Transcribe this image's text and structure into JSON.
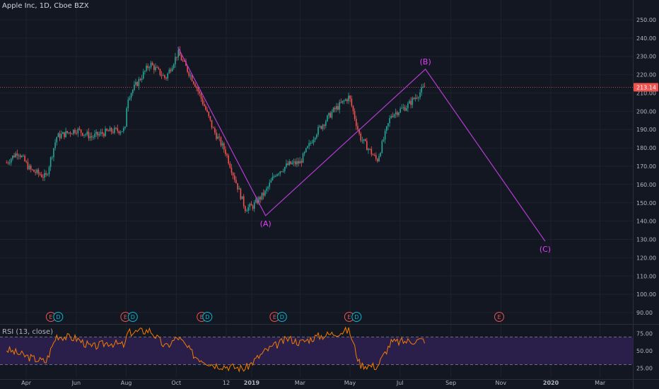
{
  "header": {
    "symbol_title": "Apple Inc, 1D, Cboe BZX"
  },
  "rsi_panel": {
    "title": "RSI (13, close)"
  },
  "colors": {
    "background": "#131722",
    "grid": "#1e222d",
    "up": "#26a69a",
    "down": "#ef5350",
    "wave": "#b43cd2",
    "wave_label": "#e040fb",
    "rsi_line": "#f57c00",
    "rsi_band": "#2a1f4a",
    "price_line": "#ef5350",
    "axis_text": "#b2b5be",
    "dividend": "#00bcd4"
  },
  "chart_data": [
    {
      "type": "candlestick",
      "title": "Apple Inc, 1D, Cboe BZX",
      "x_axis": {
        "tick_labels": [
          "Apr",
          "Jun",
          "Aug",
          "Oct",
          "12",
          "2019",
          "Mar",
          "May",
          "Jul",
          "Sep",
          "Nov",
          "2020",
          "Mar"
        ],
        "range": [
          "2018-03",
          "2020-04"
        ]
      },
      "y_axis": {
        "ticks": [
          90.0,
          100.0,
          110.0,
          120.0,
          130.0,
          140.0,
          150.0,
          160.0,
          170.0,
          180.0,
          190.0,
          200.0,
          210.0,
          220.0,
          230.0,
          240.0,
          250.0
        ],
        "range": [
          85,
          255
        ],
        "position": "right"
      },
      "grid": true,
      "last_price": 213.14,
      "last_price_label": "213.14",
      "price_path": [
        {
          "date": "2018-03-08",
          "price": 172
        },
        {
          "date": "2018-03-22",
          "price": 178
        },
        {
          "date": "2018-04-06",
          "price": 168
        },
        {
          "date": "2018-04-25",
          "price": 164
        },
        {
          "date": "2018-05-08",
          "price": 186
        },
        {
          "date": "2018-06-01",
          "price": 190
        },
        {
          "date": "2018-06-20",
          "price": 186
        },
        {
          "date": "2018-07-10",
          "price": 189
        },
        {
          "date": "2018-07-31",
          "price": 190
        },
        {
          "date": "2018-08-02",
          "price": 207
        },
        {
          "date": "2018-08-30",
          "price": 226
        },
        {
          "date": "2018-09-18",
          "price": 218
        },
        {
          "date": "2018-10-03",
          "price": 232
        },
        {
          "date": "2018-10-24",
          "price": 215
        },
        {
          "date": "2018-11-05",
          "price": 202
        },
        {
          "date": "2018-11-15",
          "price": 190
        },
        {
          "date": "2018-11-30",
          "price": 178
        },
        {
          "date": "2018-12-24",
          "price": 147
        },
        {
          "date": "2019-01-02",
          "price": 148
        },
        {
          "date": "2019-01-18",
          "price": 156
        },
        {
          "date": "2019-01-30",
          "price": 166
        },
        {
          "date": "2019-02-15",
          "price": 171
        },
        {
          "date": "2019-03-01",
          "price": 172
        },
        {
          "date": "2019-03-20",
          "price": 188
        },
        {
          "date": "2019-04-10",
          "price": 200
        },
        {
          "date": "2019-04-30",
          "price": 208
        },
        {
          "date": "2019-05-13",
          "price": 186
        },
        {
          "date": "2019-06-03",
          "price": 173
        },
        {
          "date": "2019-06-20",
          "price": 198
        },
        {
          "date": "2019-07-10",
          "price": 203
        },
        {
          "date": "2019-07-31",
          "price": 213.14
        }
      ],
      "wave_projection": {
        "points": [
          {
            "label": "",
            "date": "2018-10-03",
            "price": 235
          },
          {
            "label": "(A)",
            "date": "2019-01-18",
            "price": 143
          },
          {
            "label": "(B)",
            "date": "2019-08-01",
            "price": 223
          },
          {
            "label": "(C)",
            "date": "2019-12-25",
            "price": 129
          }
        ]
      },
      "events": [
        {
          "type": "E",
          "label": "E",
          "date": "2018-05-01"
        },
        {
          "type": "D",
          "label": "D",
          "date": "2018-05-10"
        },
        {
          "type": "E",
          "label": "E",
          "date": "2018-07-31"
        },
        {
          "type": "D",
          "label": "D",
          "date": "2018-08-09"
        },
        {
          "type": "E",
          "label": "E",
          "date": "2018-11-01"
        },
        {
          "type": "D",
          "label": "D",
          "date": "2018-11-08"
        },
        {
          "type": "E",
          "label": "E",
          "date": "2019-01-29"
        },
        {
          "type": "D",
          "label": "D",
          "date": "2019-02-07"
        },
        {
          "type": "E",
          "label": "E",
          "date": "2019-04-30"
        },
        {
          "type": "D",
          "label": "D",
          "date": "2019-05-09"
        },
        {
          "type": "E",
          "label": "E",
          "date": "2019-10-30"
        }
      ]
    },
    {
      "type": "line",
      "title": "RSI (13, close)",
      "y_axis": {
        "ticks": [
          25.0,
          50.0,
          75.0
        ],
        "range": [
          15,
          85
        ],
        "position": "right"
      },
      "bands": {
        "upper": 70,
        "lower": 30
      },
      "rsi_path": [
        {
          "date": "2018-03-08",
          "value": 52
        },
        {
          "date": "2018-04-06",
          "value": 40
        },
        {
          "date": "2018-04-25",
          "value": 34
        },
        {
          "date": "2018-05-08",
          "value": 72
        },
        {
          "date": "2018-06-01",
          "value": 68
        },
        {
          "date": "2018-06-20",
          "value": 55
        },
        {
          "date": "2018-07-10",
          "value": 62
        },
        {
          "date": "2018-07-31",
          "value": 58
        },
        {
          "date": "2018-08-02",
          "value": 76
        },
        {
          "date": "2018-08-30",
          "value": 80
        },
        {
          "date": "2018-09-18",
          "value": 55
        },
        {
          "date": "2018-10-03",
          "value": 70
        },
        {
          "date": "2018-10-24",
          "value": 42
        },
        {
          "date": "2018-11-15",
          "value": 30
        },
        {
          "date": "2018-12-24",
          "value": 24
        },
        {
          "date": "2019-01-18",
          "value": 50
        },
        {
          "date": "2019-02-15",
          "value": 68
        },
        {
          "date": "2019-03-01",
          "value": 62
        },
        {
          "date": "2019-03-20",
          "value": 70
        },
        {
          "date": "2019-04-10",
          "value": 75
        },
        {
          "date": "2019-04-30",
          "value": 80
        },
        {
          "date": "2019-05-13",
          "value": 30
        },
        {
          "date": "2019-06-03",
          "value": 27
        },
        {
          "date": "2019-06-20",
          "value": 62
        },
        {
          "date": "2019-07-10",
          "value": 64
        },
        {
          "date": "2019-07-31",
          "value": 66
        }
      ]
    }
  ]
}
